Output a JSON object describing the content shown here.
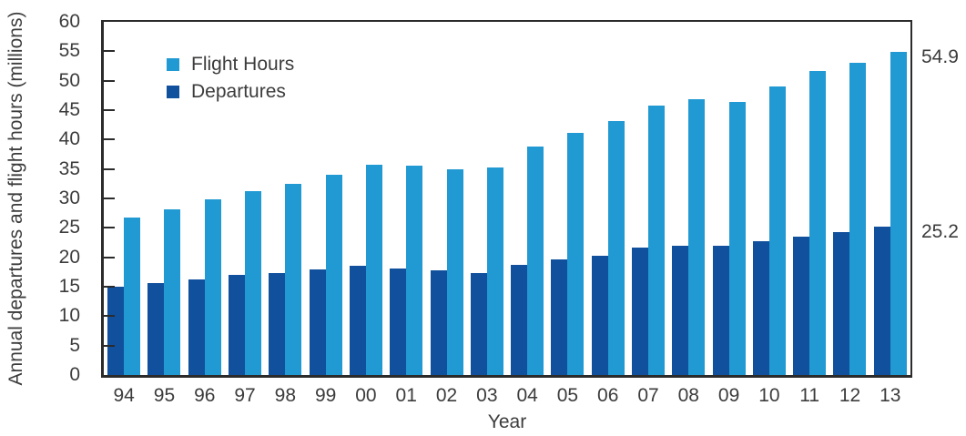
{
  "chart_data": {
    "type": "bar",
    "title": "",
    "xlabel": "Year",
    "ylabel": "Annual departures and flight hours (millions)",
    "ylim": [
      0,
      60
    ],
    "ytick_step": 5,
    "grid": false,
    "legend_position": "top-left-inside",
    "bar_draw_order": [
      "Departures",
      "Flight Hours"
    ],
    "categories": [
      "94",
      "95",
      "96",
      "97",
      "98",
      "99",
      "00",
      "01",
      "02",
      "03",
      "04",
      "05",
      "06",
      "07",
      "08",
      "09",
      "10",
      "11",
      "12",
      "13"
    ],
    "series": [
      {
        "name": "Flight Hours",
        "color": "#2199D3",
        "values": [
          26.7,
          28.1,
          29.8,
          31.2,
          32.4,
          34.1,
          35.8,
          35.5,
          34.9,
          35.2,
          38.8,
          41.2,
          43.2,
          45.7,
          46.9,
          46.4,
          49.0,
          51.7,
          53.0,
          54.9
        ]
      },
      {
        "name": "Departures",
        "color": "#10509C",
        "values": [
          15.0,
          15.6,
          16.3,
          17.0,
          17.3,
          18.0,
          18.5,
          18.1,
          17.8,
          17.3,
          18.7,
          19.6,
          20.2,
          21.6,
          21.9,
          21.9,
          22.7,
          23.5,
          24.3,
          25.2
        ]
      }
    ],
    "end_labels": [
      {
        "text": "54.9",
        "value": 54.9,
        "series": "Flight Hours"
      },
      {
        "text": "25.2",
        "value": 25.2,
        "series": "Departures"
      }
    ]
  },
  "colors": {
    "axis": "#2b2b2b",
    "text": "#3c3c3c",
    "flight_hours": "#2199D3",
    "departures": "#10509C",
    "background": "#ffffff"
  }
}
